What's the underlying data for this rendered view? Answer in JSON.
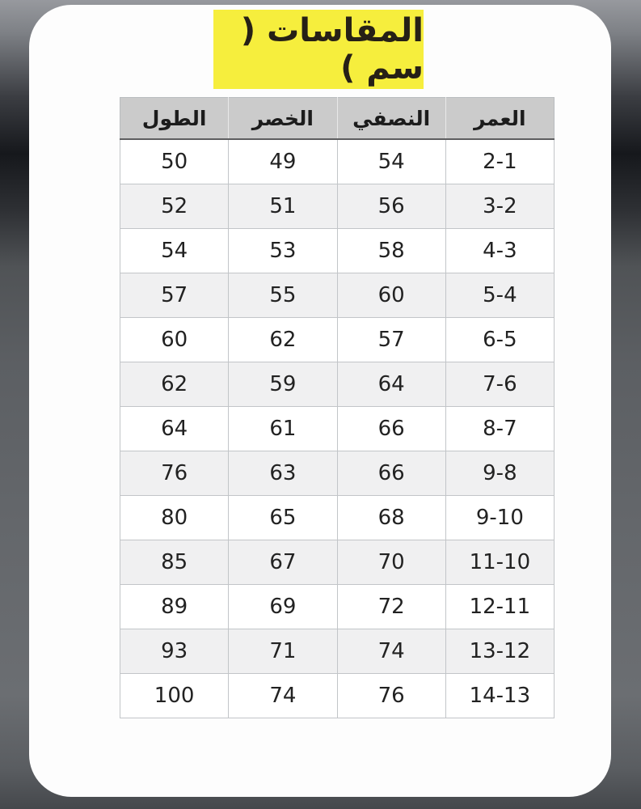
{
  "title": {
    "text": "المقاسات ( سم )"
  },
  "table": {
    "headers": [
      {
        "key": "height",
        "label": "الطول"
      },
      {
        "key": "waist",
        "label": "الخصر"
      },
      {
        "key": "half",
        "label": "النصفي"
      },
      {
        "key": "age",
        "label": "العمر"
      }
    ],
    "rows": [
      [
        "50",
        "49",
        "54",
        "2-1"
      ],
      [
        "52",
        "51",
        "56",
        "3-2"
      ],
      [
        "54",
        "53",
        "58",
        "4-3"
      ],
      [
        "57",
        "55",
        "60",
        "5-4"
      ],
      [
        "60",
        "62",
        "57",
        "6-5"
      ],
      [
        "62",
        "59",
        "64",
        "7-6"
      ],
      [
        "64",
        "61",
        "66",
        "8-7"
      ],
      [
        "76",
        "63",
        "66",
        "9-8"
      ],
      [
        "80",
        "65",
        "68",
        "9-10"
      ],
      [
        "85",
        "67",
        "70",
        "11-10"
      ],
      [
        "89",
        "69",
        "72",
        "12-11"
      ],
      [
        "93",
        "71",
        "74",
        "13-12"
      ],
      [
        "100",
        "74",
        "76",
        "14-13"
      ]
    ]
  },
  "colors": {
    "title_highlight": "#f6ee3d",
    "header_bg": "#cbcbcb",
    "zebra_row_bg": "#f0f0f1",
    "card_bg": "#fdfdfd",
    "grid_line": "#c2c5c8"
  }
}
